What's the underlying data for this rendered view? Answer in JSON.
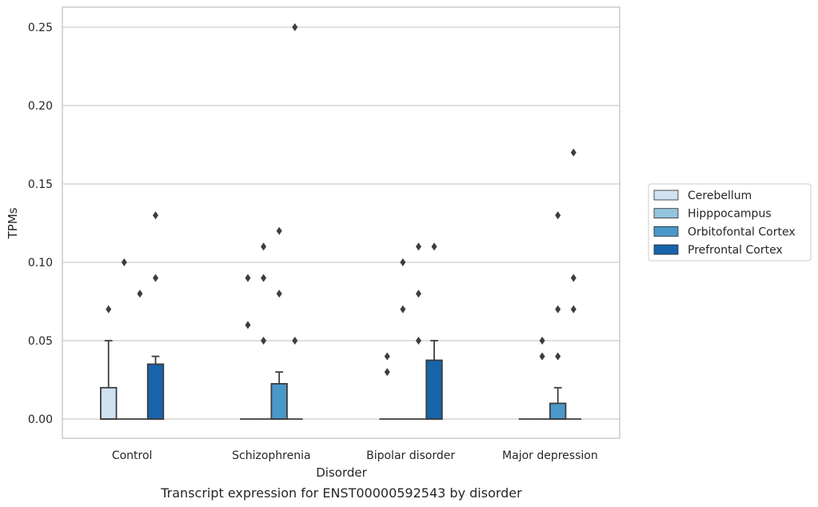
{
  "chart_data": {
    "type": "boxplot",
    "title": "",
    "caption": "Transcript expression for ENST00000592543 by disorder",
    "xlabel": "Disorder",
    "ylabel": "TPMs",
    "ylim": [
      -0.012,
      0.263
    ],
    "yticks": [
      0.0,
      0.05,
      0.1,
      0.15,
      0.2,
      0.25
    ],
    "ytick_labels": [
      "0.00",
      "0.05",
      "0.10",
      "0.15",
      "0.20",
      "0.25"
    ],
    "grid": "horizontal",
    "legend_position": "right",
    "categories": [
      "Control",
      "Schizophrenia",
      "Bipolar disorder",
      "Major depression"
    ],
    "series": [
      {
        "name": "Cerebellum",
        "color": "#d0e1f2",
        "boxes": [
          {
            "q1": 0.0,
            "median": 0.0,
            "q3": 0.02,
            "whisker_low": 0.0,
            "whisker_high": 0.05,
            "outliers": [
              0.07
            ]
          },
          {
            "q1": 0.0,
            "median": 0.0,
            "q3": 0.0,
            "whisker_low": 0.0,
            "whisker_high": 0.0,
            "outliers": [
              0.06,
              0.09
            ]
          },
          {
            "q1": 0.0,
            "median": 0.0,
            "q3": 0.0,
            "whisker_low": 0.0,
            "whisker_high": 0.0,
            "outliers": [
              0.03,
              0.04
            ]
          },
          {
            "q1": 0.0,
            "median": 0.0,
            "q3": 0.0,
            "whisker_low": 0.0,
            "whisker_high": 0.0,
            "outliers": []
          }
        ]
      },
      {
        "name": "Hipppocampus",
        "color": "#94c4df",
        "boxes": [
          {
            "q1": 0.0,
            "median": 0.0,
            "q3": 0.0,
            "whisker_low": 0.0,
            "whisker_high": 0.0,
            "outliers": [
              0.1
            ]
          },
          {
            "q1": 0.0,
            "median": 0.0,
            "q3": 0.0,
            "whisker_low": 0.0,
            "whisker_high": 0.0,
            "outliers": [
              0.05,
              0.09,
              0.11
            ]
          },
          {
            "q1": 0.0,
            "median": 0.0,
            "q3": 0.0,
            "whisker_low": 0.0,
            "whisker_high": 0.0,
            "outliers": [
              0.07,
              0.1
            ]
          },
          {
            "q1": 0.0,
            "median": 0.0,
            "q3": 0.0,
            "whisker_low": 0.0,
            "whisker_high": 0.0,
            "outliers": [
              0.04,
              0.05
            ]
          }
        ]
      },
      {
        "name": "Orbitofontal Cortex",
        "color": "#4a98c9",
        "boxes": [
          {
            "q1": 0.0,
            "median": 0.0,
            "q3": 0.0,
            "whisker_low": 0.0,
            "whisker_high": 0.0,
            "outliers": [
              0.08
            ]
          },
          {
            "q1": 0.0,
            "median": 0.0,
            "q3": 0.0225,
            "whisker_low": 0.0,
            "whisker_high": 0.03,
            "outliers": [
              0.08,
              0.12
            ]
          },
          {
            "q1": 0.0,
            "median": 0.0,
            "q3": 0.0,
            "whisker_low": 0.0,
            "whisker_high": 0.0,
            "outliers": [
              0.05,
              0.08,
              0.11
            ]
          },
          {
            "q1": 0.0,
            "median": 0.0,
            "q3": 0.01,
            "whisker_low": 0.0,
            "whisker_high": 0.02,
            "outliers": [
              0.04,
              0.07,
              0.13
            ]
          }
        ]
      },
      {
        "name": "Prefrontal Cortex",
        "color": "#1764ab",
        "boxes": [
          {
            "q1": 0.0,
            "median": 0.0,
            "q3": 0.035,
            "whisker_low": 0.0,
            "whisker_high": 0.04,
            "outliers": [
              0.09,
              0.13
            ]
          },
          {
            "q1": 0.0,
            "median": 0.0,
            "q3": 0.0,
            "whisker_low": 0.0,
            "whisker_high": 0.0,
            "outliers": [
              0.05,
              0.25
            ]
          },
          {
            "q1": 0.0,
            "median": 0.0,
            "q3": 0.0375,
            "whisker_low": 0.0,
            "whisker_high": 0.05,
            "outliers": [
              0.11
            ]
          },
          {
            "q1": 0.0,
            "median": 0.0,
            "q3": 0.0,
            "whisker_low": 0.0,
            "whisker_high": 0.0,
            "outliers": [
              0.07,
              0.09,
              0.17
            ]
          }
        ]
      }
    ]
  }
}
